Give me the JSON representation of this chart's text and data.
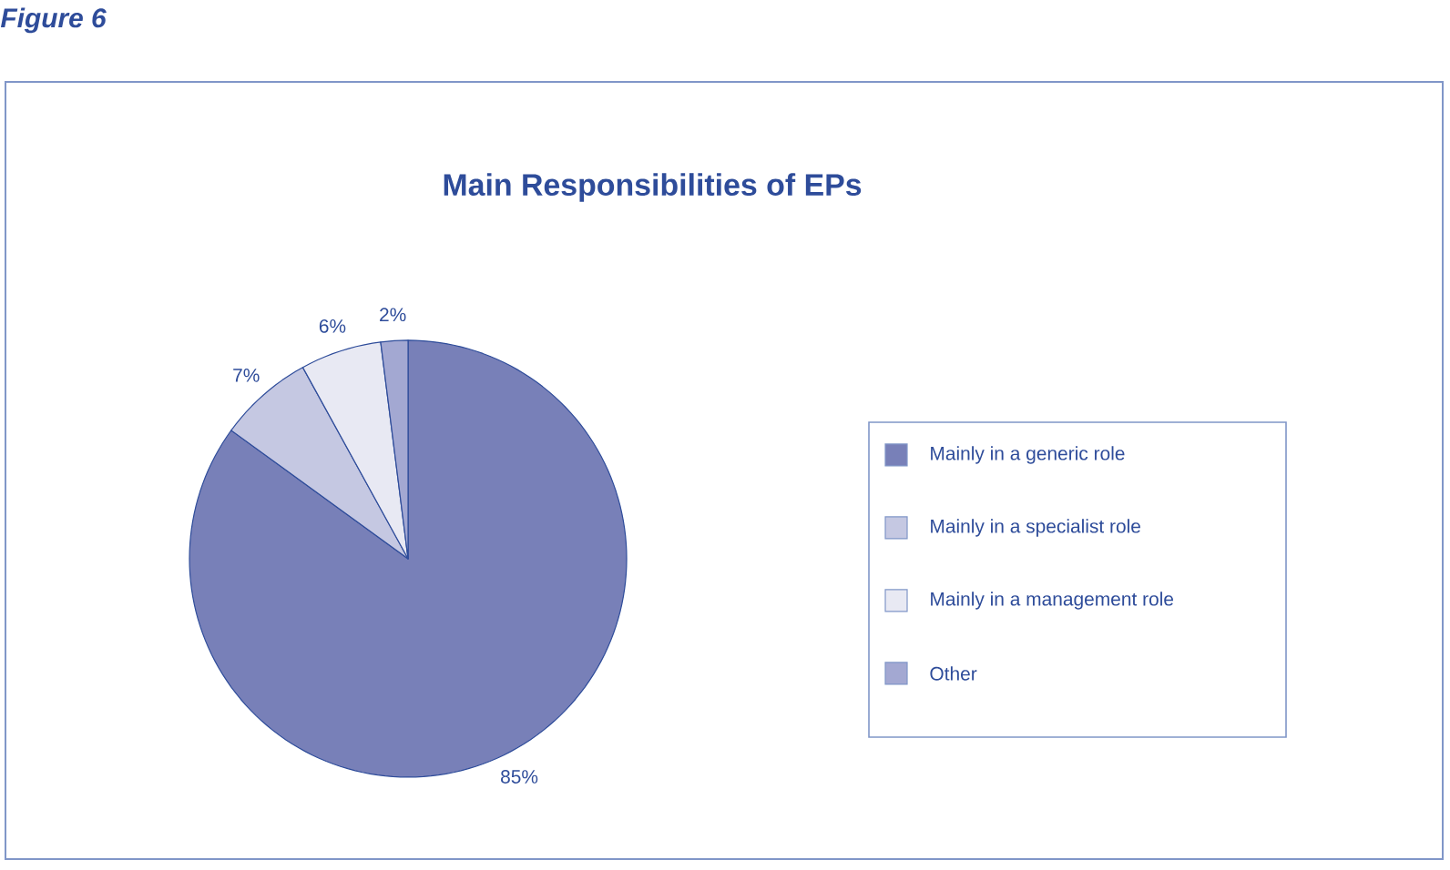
{
  "chart_data": {
    "type": "pie",
    "title": "Main Responsibilities of EPs",
    "categories": [
      "Mainly in a generic role",
      "Mainly in a specialist role",
      "Mainly in a management role",
      "Other"
    ],
    "values": [
      85,
      7,
      6,
      2
    ],
    "colors": [
      "#7880b8",
      "#c5c8e2",
      "#e8e9f3",
      "#a3a8d2"
    ],
    "value_labels": [
      "85%",
      "7%",
      "6%",
      "2%"
    ],
    "legend": "right",
    "annotations": [
      "Figure 6"
    ]
  }
}
